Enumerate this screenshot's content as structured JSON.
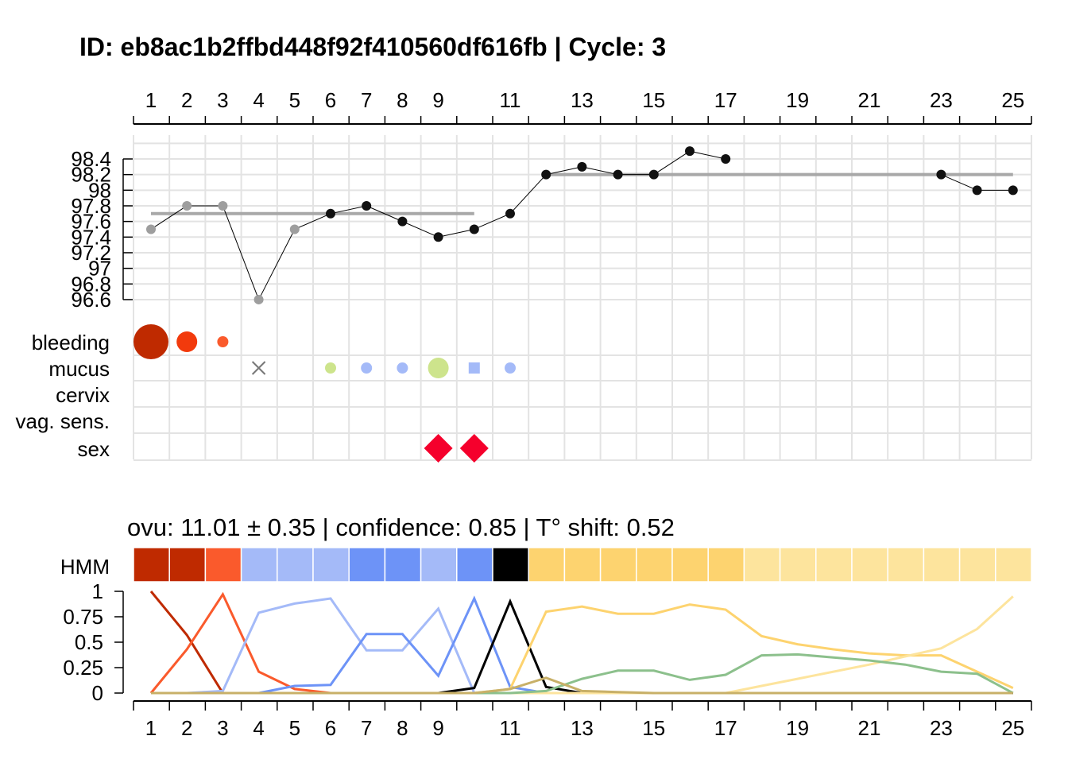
{
  "title": "ID: eb8ac1b2ffbd448f92f410560df616fb | Cycle: 3",
  "subtitle": "ovu:  11.01  ±  0.35  | confidence: 0.85  | T° shift:  0.52",
  "hmm_label": "HMM",
  "colors": {
    "grid": "#e3e3e3",
    "bleeding_heavy": "#bf2a00",
    "bleeding_medium": "#f23a0c",
    "bleeding_light": "#fa5a2c",
    "mucus_x": "#777777",
    "mucus_green": "#cde48c",
    "mucus_blue": "#a4baf8",
    "sex": "#f5002c",
    "temp_excluded": "#9e9e9e",
    "temp_included": "#111111",
    "baseline": "#a8a8a8"
  },
  "chart_data": [
    {
      "type": "line",
      "name": "temperature",
      "x_ticks": [
        1,
        2,
        3,
        4,
        5,
        6,
        7,
        8,
        9,
        11,
        13,
        15,
        17,
        19,
        21,
        23,
        25
      ],
      "y_ticks": [
        "96.6",
        "96.8",
        "97",
        "97.2",
        "97.4",
        "97.6",
        "97.8",
        "98",
        "98.2",
        "98.4"
      ],
      "ylim": [
        96.6,
        98.4
      ],
      "xlim": [
        1,
        25
      ],
      "points": [
        {
          "day": 1,
          "temp": 97.5,
          "excluded": true
        },
        {
          "day": 2,
          "temp": 97.8,
          "excluded": true
        },
        {
          "day": 3,
          "temp": 97.8,
          "excluded": true
        },
        {
          "day": 4,
          "temp": 96.6,
          "excluded": true
        },
        {
          "day": 5,
          "temp": 97.5,
          "excluded": true
        },
        {
          "day": 6,
          "temp": 97.7,
          "excluded": false
        },
        {
          "day": 7,
          "temp": 97.8,
          "excluded": false
        },
        {
          "day": 8,
          "temp": 97.6,
          "excluded": false
        },
        {
          "day": 9,
          "temp": 97.4,
          "excluded": false
        },
        {
          "day": 10,
          "temp": 97.5,
          "excluded": false
        },
        {
          "day": 11,
          "temp": 97.7,
          "excluded": false
        },
        {
          "day": 12,
          "temp": 98.2,
          "excluded": false
        },
        {
          "day": 13,
          "temp": 98.3,
          "excluded": false
        },
        {
          "day": 14,
          "temp": 98.2,
          "excluded": false
        },
        {
          "day": 15,
          "temp": 98.2,
          "excluded": false
        },
        {
          "day": 16,
          "temp": 98.5,
          "excluded": false
        },
        {
          "day": 17,
          "temp": 98.4,
          "excluded": false
        },
        {
          "day": 23,
          "temp": 98.2,
          "excluded": false
        },
        {
          "day": 24,
          "temp": 98.0,
          "excluded": false
        },
        {
          "day": 25,
          "temp": 98.0,
          "excluded": false
        }
      ],
      "baselines": [
        {
          "from": 1,
          "to": 10,
          "temp": 97.7
        },
        {
          "from": 12,
          "to": 25,
          "temp": 98.2
        }
      ]
    },
    {
      "type": "scatter",
      "name": "observations",
      "rows": [
        "bleeding",
        "mucus",
        "cervix",
        "vag. sens.",
        "sex"
      ],
      "marks": [
        {
          "row": "bleeding",
          "day": 1,
          "shape": "circle",
          "size": 3,
          "color": "#bf2a00"
        },
        {
          "row": "bleeding",
          "day": 2,
          "shape": "circle",
          "size": 2,
          "color": "#f23a0c"
        },
        {
          "row": "bleeding",
          "day": 3,
          "shape": "circle",
          "size": 1,
          "color": "#fa5a2c"
        },
        {
          "row": "mucus",
          "day": 4,
          "shape": "cross",
          "size": 1,
          "color": "#777777"
        },
        {
          "row": "mucus",
          "day": 6,
          "shape": "circle",
          "size": 1,
          "color": "#cde48c"
        },
        {
          "row": "mucus",
          "day": 7,
          "shape": "circle",
          "size": 1,
          "color": "#a4baf8"
        },
        {
          "row": "mucus",
          "day": 8,
          "shape": "circle",
          "size": 1,
          "color": "#a4baf8"
        },
        {
          "row": "mucus",
          "day": 9,
          "shape": "circle",
          "size": 2,
          "color": "#cde48c"
        },
        {
          "row": "mucus",
          "day": 10,
          "shape": "square",
          "size": 1,
          "color": "#a4baf8"
        },
        {
          "row": "mucus",
          "day": 11,
          "shape": "circle",
          "size": 1,
          "color": "#a4baf8"
        },
        {
          "row": "sex",
          "day": 9,
          "shape": "diamond",
          "size": 2,
          "color": "#f5002c"
        },
        {
          "row": "sex",
          "day": 10,
          "shape": "diamond",
          "size": 2,
          "color": "#f5002c"
        }
      ]
    },
    {
      "type": "heatmap",
      "name": "HMM",
      "days": [
        1,
        25
      ],
      "cells": [
        "#bf2a00",
        "#bf2a00",
        "#fa5a2c",
        "#a4baf8",
        "#a4baf8",
        "#a4baf8",
        "#6d93f7",
        "#6d93f7",
        "#a4baf8",
        "#6d93f7",
        "#000000",
        "#fdd36f",
        "#fdd36f",
        "#fdd36f",
        "#fdd36f",
        "#fdd36f",
        "#fdd36f",
        "#fde49d",
        "#fde49d",
        "#fde49d",
        "#fde49d",
        "#fde49d",
        "#fde49d",
        "#fde49d",
        "#fde49d"
      ]
    },
    {
      "type": "line",
      "name": "state probabilities",
      "x": [
        1,
        2,
        3,
        4,
        5,
        6,
        7,
        8,
        9,
        10,
        11,
        12,
        13,
        14,
        15,
        16,
        17,
        18,
        19,
        20,
        21,
        22,
        23,
        24,
        25
      ],
      "x_ticks": [
        1,
        2,
        3,
        4,
        5,
        6,
        7,
        8,
        9,
        11,
        13,
        15,
        17,
        19,
        21,
        23,
        25
      ],
      "y_ticks": [
        "0",
        "0.25",
        "0.5",
        "0.75",
        "1"
      ],
      "ylim": [
        0,
        1
      ],
      "series": [
        {
          "color": "#bf2a00",
          "values": [
            1,
            0.57,
            0,
            0,
            0,
            0,
            0,
            0,
            0,
            0,
            0,
            0,
            0,
            0,
            0,
            0,
            0,
            0,
            0,
            0,
            0,
            0,
            0,
            0,
            0
          ]
        },
        {
          "color": "#fa5a2c",
          "values": [
            0,
            0.43,
            0.97,
            0.21,
            0.04,
            0,
            0,
            0,
            0,
            0,
            0,
            0,
            0,
            0,
            0,
            0,
            0,
            0,
            0,
            0,
            0,
            0,
            0,
            0,
            0
          ]
        },
        {
          "color": "#a4baf8",
          "values": [
            0,
            0,
            0.02,
            0.79,
            0.88,
            0.93,
            0.42,
            0.42,
            0.83,
            0,
            0,
            0,
            0,
            0,
            0,
            0,
            0,
            0,
            0,
            0,
            0,
            0,
            0,
            0,
            0
          ]
        },
        {
          "color": "#6d93f7",
          "values": [
            0,
            0,
            0,
            0,
            0.07,
            0.08,
            0.58,
            0.58,
            0.17,
            0.93,
            0.06,
            0,
            0,
            0,
            0,
            0,
            0,
            0,
            0,
            0,
            0,
            0,
            0,
            0,
            0
          ]
        },
        {
          "color": "#000000",
          "values": [
            0,
            0,
            0,
            0,
            0,
            0,
            0,
            0,
            0,
            0.05,
            0.9,
            0.06,
            0,
            0,
            0,
            0,
            0,
            0,
            0,
            0,
            0,
            0,
            0,
            0,
            0
          ]
        },
        {
          "color": "#fdd36f",
          "values": [
            0,
            0,
            0,
            0,
            0,
            0,
            0,
            0,
            0,
            0,
            0.04,
            0.8,
            0.85,
            0.78,
            0.78,
            0.87,
            0.82,
            0.56,
            0.48,
            0.43,
            0.39,
            0.37,
            0.37,
            0.21,
            0.05
          ]
        },
        {
          "color": "#fde49d",
          "values": [
            0,
            0,
            0,
            0,
            0,
            0,
            0,
            0,
            0,
            0,
            0,
            0,
            0,
            0,
            0,
            0,
            0,
            0.07,
            0.14,
            0.21,
            0.28,
            0.36,
            0.44,
            0.63,
            0.95
          ]
        },
        {
          "color": "#8cc08c",
          "values": [
            0,
            0,
            0,
            0,
            0,
            0,
            0,
            0,
            0,
            0,
            0,
            0.02,
            0.14,
            0.22,
            0.22,
            0.13,
            0.18,
            0.37,
            0.38,
            0.35,
            0.32,
            0.28,
            0.21,
            0.19,
            0
          ]
        },
        {
          "color": "#c8b068",
          "values": [
            0,
            0,
            0,
            0,
            0,
            0,
            0,
            0,
            0,
            0,
            0.04,
            0.15,
            0.02,
            0.01,
            0,
            0,
            0,
            0,
            0,
            0,
            0,
            0,
            0,
            0,
            0
          ]
        }
      ]
    }
  ]
}
